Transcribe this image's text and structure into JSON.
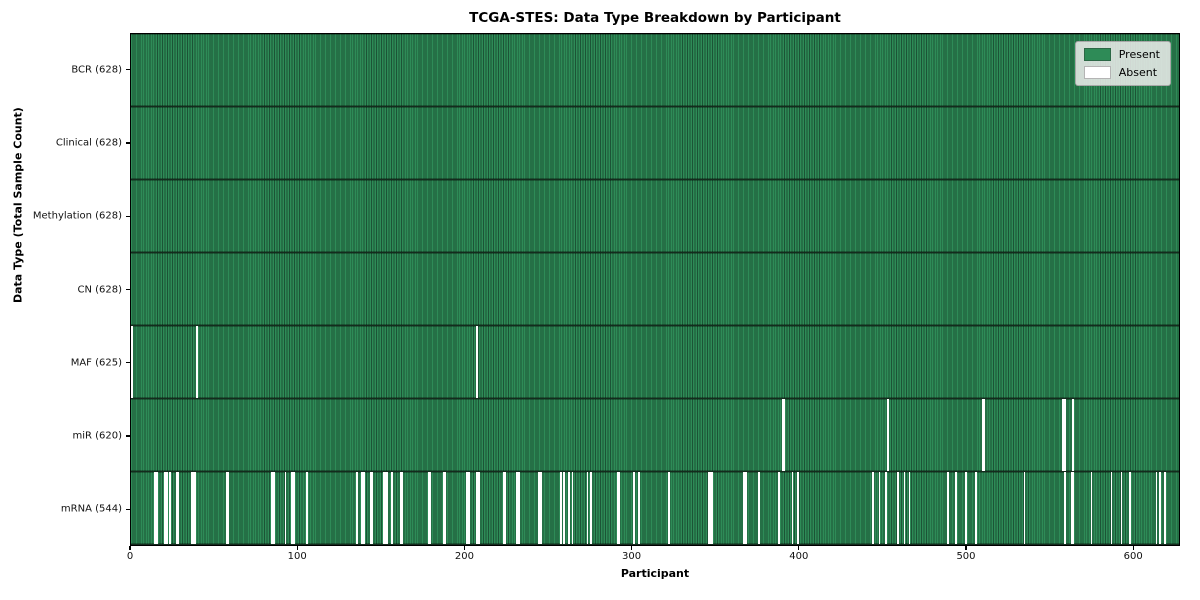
{
  "chart_data": {
    "type": "heatmap",
    "title": "TCGA-STES: Data Type Breakdown by Participant",
    "xlabel": "Participant",
    "ylabel": "Data Type (Total Sample Count)",
    "n_participants": 628,
    "x_range": [
      0,
      628
    ],
    "x_ticks": [
      0,
      100,
      200,
      300,
      400,
      500,
      600
    ],
    "grid": false,
    "legend_position": "upper right",
    "legend": [
      {
        "label": "Present",
        "color": "#2e8b57"
      },
      {
        "label": "Absent",
        "color": "#ffffff"
      }
    ],
    "rows": [
      {
        "label": "BCR (628)",
        "total": 628,
        "absent": []
      },
      {
        "label": "Clinical (628)",
        "total": 628,
        "absent": []
      },
      {
        "label": "Methylation (628)",
        "total": 628,
        "absent": []
      },
      {
        "label": "CN (628)",
        "total": 628,
        "absent": []
      },
      {
        "label": "MAF (625)",
        "total": 625,
        "absent": [
          0,
          39,
          207
        ]
      },
      {
        "label": "miR (620)",
        "total": 620,
        "absent": [
          390,
          391,
          453,
          510,
          511,
          558,
          559,
          564
        ]
      },
      {
        "label": "mRNA (544)",
        "total": 544,
        "absent": [
          14,
          15,
          20,
          21,
          23,
          27,
          28,
          36,
          37,
          38,
          57,
          58,
          84,
          85,
          92,
          96,
          97,
          105,
          135,
          138,
          139,
          143,
          144,
          151,
          152,
          153,
          156,
          161,
          162,
          178,
          179,
          187,
          188,
          201,
          202,
          207,
          208,
          223,
          224,
          231,
          232,
          244,
          245,
          257,
          259,
          262,
          264,
          273,
          275,
          291,
          292,
          301,
          304,
          322,
          346,
          347,
          348,
          367,
          368,
          376,
          388,
          396,
          399,
          444,
          448,
          452,
          459,
          463,
          466,
          489,
          494,
          500,
          506,
          535,
          559,
          563,
          564,
          575,
          587,
          593,
          598,
          614,
          616,
          619
        ]
      }
    ]
  }
}
